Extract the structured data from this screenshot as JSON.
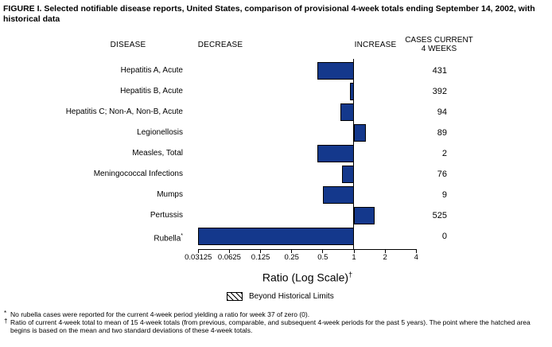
{
  "title": "FIGURE I. Selected notifiable disease reports, United States, comparison of provisional 4-week totals ending September 14, 2002, with historical data",
  "columns": {
    "disease": "DISEASE",
    "decrease": "DECREASE",
    "increase": "INCREASE",
    "cases_line1": "CASES CURRENT",
    "cases_line2": "4 WEEKS"
  },
  "chart_data": {
    "type": "bar",
    "orientation": "horizontal",
    "scale": "log",
    "baseline_value": 1,
    "xlim": [
      0.03125,
      4
    ],
    "x_ticks": [
      "0.03125",
      "0.0625",
      "0.125",
      "0.25",
      "0.5",
      "1",
      "2",
      "4"
    ],
    "xlabel": "Ratio (Log Scale)",
    "xlabel_footnote_marker": "†",
    "bar_color": "#14388c",
    "bar_border_color": "#000000",
    "rows": [
      {
        "disease": "Hepatitis A, Acute",
        "marker": "",
        "ratio": 0.44,
        "cases": "431"
      },
      {
        "disease": "Hepatitis B, Acute",
        "marker": "",
        "ratio": 0.92,
        "cases": "392"
      },
      {
        "disease": "Hepatitis C; Non-A, Non-B, Acute",
        "marker": "",
        "ratio": 0.74,
        "cases": "94"
      },
      {
        "disease": "Legionellosis",
        "marker": "",
        "ratio": 1.31,
        "cases": "89"
      },
      {
        "disease": "Measles, Total",
        "marker": "",
        "ratio": 0.44,
        "cases": "2"
      },
      {
        "disease": "Meningococcal Infections",
        "marker": "",
        "ratio": 0.77,
        "cases": "76"
      },
      {
        "disease": "Mumps",
        "marker": "",
        "ratio": 0.5,
        "cases": "9"
      },
      {
        "disease": "Pertussis",
        "marker": "",
        "ratio": 1.59,
        "cases": "525"
      },
      {
        "disease": "Rubella",
        "marker": "*",
        "ratio": 0,
        "cases": "0"
      }
    ],
    "legend": {
      "swatch": "hatched",
      "label": "Beyond Historical Limits"
    }
  },
  "footnotes": [
    {
      "marker": "*",
      "text": "No rubella cases were reported for the current 4-week period yielding a ratio for week 37 of zero (0)."
    },
    {
      "marker": "†",
      "text": "Ratio of current 4-week total to mean of 15 4-week totals (from previous, comparable, and subsequent 4-week periods for the past 5 years). The point where the hatched area begins is based on the mean and two standard deviations of these 4-week totals."
    }
  ]
}
